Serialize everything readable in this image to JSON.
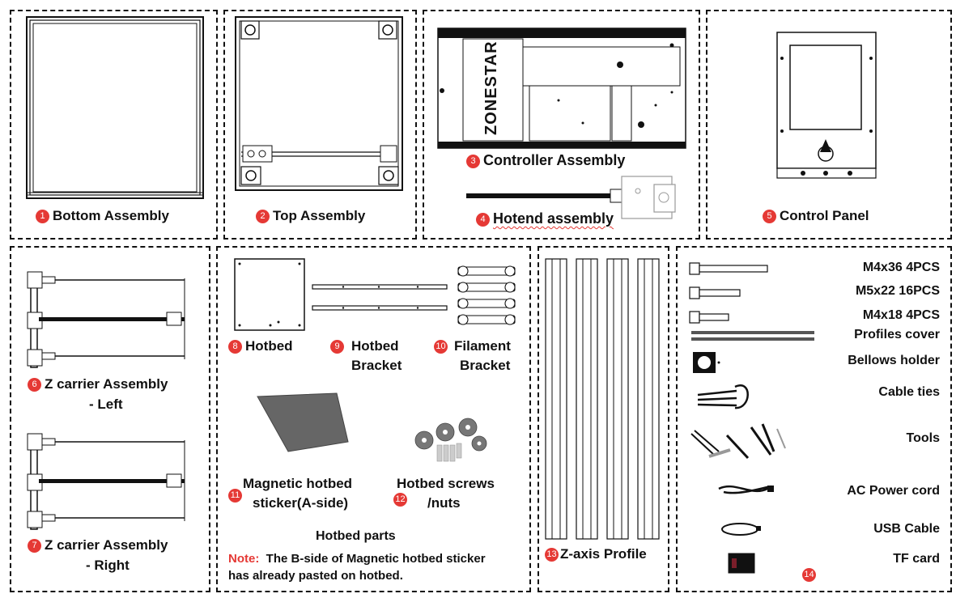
{
  "parts": {
    "bottom": {
      "num": "1",
      "label": "Bottom Assembly"
    },
    "top": {
      "num": "2",
      "label": "Top Assembly"
    },
    "controller": {
      "num": "3",
      "label": "Controller Assembly",
      "brand": "ZONESTAR"
    },
    "hotend": {
      "num": "4",
      "label": "Hotend assembly"
    },
    "control_panel": {
      "num": "5",
      "label": "Control Panel"
    },
    "z_left": {
      "num": "6",
      "label_line1": "Z carrier Assembly",
      "label_line2": "- Left"
    },
    "z_right": {
      "num": "7",
      "label_line1": "Z carrier Assembly",
      "label_line2": "- Right"
    },
    "hotbed": {
      "num": "8",
      "label": "Hotbed"
    },
    "hotbed_bracket": {
      "num": "9",
      "label_line1": "Hotbed",
      "label_line2": "Bracket"
    },
    "filament_bracket": {
      "num": "10",
      "label_line1": "Filament",
      "label_line2": "Bracket"
    },
    "magnetic_sticker": {
      "num": "11",
      "label_line1": "Magnetic hotbed",
      "label_line2": "sticker(A-side)"
    },
    "hotbed_screws": {
      "num": "12",
      "label_line1": "Hotbed screws",
      "label_line2": "/nuts"
    },
    "z_profile": {
      "num": "13",
      "label": "Z-axis Profile"
    },
    "accessories": {
      "num": "14"
    }
  },
  "hotbed_parts": {
    "title": "Hotbed parts",
    "note_label": "Note:",
    "note_text_line1": "The B-side of Magnetic hotbed sticker",
    "note_text_line2": "has already pasted on hotbed."
  },
  "accessories_list": [
    {
      "name": "m4x36",
      "label": "M4x36   4PCS"
    },
    {
      "name": "m5x22",
      "label": "M5x22 16PCS"
    },
    {
      "name": "m4x18",
      "label": "M4x18   4PCS"
    },
    {
      "name": "profiles-cover",
      "label": "Profiles cover"
    },
    {
      "name": "bellows-holder",
      "label": "Bellows holder"
    },
    {
      "name": "cable-ties",
      "label": "Cable ties"
    },
    {
      "name": "tools",
      "label": "Tools"
    },
    {
      "name": "ac-power-cord",
      "label": "AC Power cord"
    },
    {
      "name": "usb-cable",
      "label": "USB Cable"
    },
    {
      "name": "tf-card",
      "label": "TF card"
    }
  ],
  "colors": {
    "badge": "#e53935",
    "line": "#111111"
  }
}
